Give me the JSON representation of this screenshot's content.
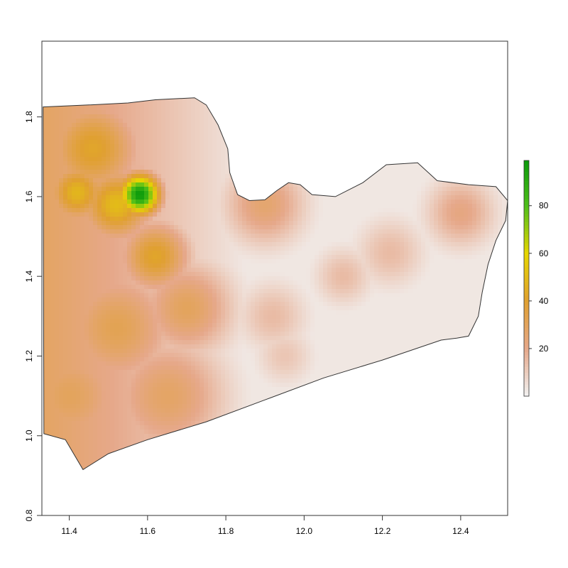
{
  "chart_data": {
    "type": "heatmap",
    "title": "",
    "xlabel": "",
    "ylabel": "",
    "xlim": [
      11.33,
      12.52
    ],
    "ylim": [
      0.8,
      1.99
    ],
    "x_ticks": [
      {
        "value": 11.4,
        "label": "11.4"
      },
      {
        "value": 11.6,
        "label": "11.6"
      },
      {
        "value": 11.8,
        "label": "11.8"
      },
      {
        "value": 12.0,
        "label": "12.0"
      },
      {
        "value": 12.2,
        "label": "12.2"
      },
      {
        "value": 12.4,
        "label": "12.4"
      }
    ],
    "y_ticks": [
      {
        "value": 0.8,
        "label": "0.8"
      },
      {
        "value": 1.0,
        "label": "1.0"
      },
      {
        "value": 1.2,
        "label": "1.2"
      },
      {
        "value": 1.4,
        "label": "1.4"
      },
      {
        "value": 1.6,
        "label": "1.6"
      },
      {
        "value": 1.8,
        "label": "1.8"
      }
    ],
    "value_range": [
      0,
      99
    ],
    "color_scale": [
      {
        "value": 0,
        "color": "#f2f2f2"
      },
      {
        "value": 20,
        "color": "#e6a88a"
      },
      {
        "value": 40,
        "color": "#e0a030"
      },
      {
        "value": 60,
        "color": "#e6d600"
      },
      {
        "value": 80,
        "color": "#4fbf1a"
      },
      {
        "value": 99,
        "color": "#0b9a0b"
      }
    ],
    "legend": {
      "position": "right",
      "ticks": [
        {
          "value": 20,
          "label": "20"
        },
        {
          "value": 40,
          "label": "40"
        },
        {
          "value": 60,
          "label": "60"
        },
        {
          "value": 80,
          "label": "80"
        }
      ]
    },
    "boundary": [
      [
        11.333,
        1.825
      ],
      [
        11.45,
        1.83
      ],
      [
        11.55,
        1.835
      ],
      [
        11.62,
        1.843
      ],
      [
        11.72,
        1.848
      ],
      [
        11.75,
        1.83
      ],
      [
        11.78,
        1.78
      ],
      [
        11.805,
        1.72
      ],
      [
        11.81,
        1.66
      ],
      [
        11.83,
        1.605
      ],
      [
        11.86,
        1.59
      ],
      [
        11.9,
        1.592
      ],
      [
        11.93,
        1.615
      ],
      [
        11.96,
        1.635
      ],
      [
        11.99,
        1.63
      ],
      [
        12.02,
        1.605
      ],
      [
        12.08,
        1.6
      ],
      [
        12.15,
        1.635
      ],
      [
        12.21,
        1.68
      ],
      [
        12.29,
        1.685
      ],
      [
        12.34,
        1.64
      ],
      [
        12.42,
        1.63
      ],
      [
        12.49,
        1.625
      ],
      [
        12.52,
        1.59
      ],
      [
        12.515,
        1.54
      ],
      [
        12.49,
        1.49
      ],
      [
        12.47,
        1.43
      ],
      [
        12.455,
        1.36
      ],
      [
        12.445,
        1.3
      ],
      [
        12.42,
        1.25
      ],
      [
        12.39,
        1.245
      ],
      [
        12.35,
        1.24
      ],
      [
        12.2,
        1.19
      ],
      [
        12.05,
        1.145
      ],
      [
        11.9,
        1.09
      ],
      [
        11.75,
        1.035
      ],
      [
        11.6,
        0.99
      ],
      [
        11.5,
        0.955
      ],
      [
        11.435,
        0.915
      ],
      [
        11.39,
        0.99
      ],
      [
        11.335,
        1.005
      ]
    ],
    "hotspots": [
      {
        "x": 11.58,
        "y": 1.605,
        "value": 99,
        "radius": 0.035
      },
      {
        "x": 11.52,
        "y": 1.58,
        "value": 50,
        "radius": 0.06
      },
      {
        "x": 11.42,
        "y": 1.61,
        "value": 48,
        "radius": 0.05
      },
      {
        "x": 11.62,
        "y": 1.45,
        "value": 42,
        "radius": 0.06
      },
      {
        "x": 11.46,
        "y": 1.72,
        "value": 42,
        "radius": 0.08
      },
      {
        "x": 11.52,
        "y": 1.27,
        "value": 32,
        "radius": 0.1
      },
      {
        "x": 11.4,
        "y": 1.1,
        "value": 30,
        "radius": 0.1
      },
      {
        "x": 11.7,
        "y": 1.32,
        "value": 30,
        "radius": 0.08
      },
      {
        "x": 11.65,
        "y": 1.1,
        "value": 28,
        "radius": 0.1
      },
      {
        "x": 11.9,
        "y": 1.58,
        "value": 26,
        "radius": 0.07
      },
      {
        "x": 12.4,
        "y": 1.56,
        "value": 22,
        "radius": 0.06
      },
      {
        "x": 12.22,
        "y": 1.46,
        "value": 15,
        "radius": 0.06
      },
      {
        "x": 12.1,
        "y": 1.4,
        "value": 15,
        "radius": 0.05
      },
      {
        "x": 11.92,
        "y": 1.3,
        "value": 15,
        "radius": 0.06
      },
      {
        "x": 11.95,
        "y": 1.2,
        "value": 12,
        "radius": 0.05
      }
    ]
  }
}
